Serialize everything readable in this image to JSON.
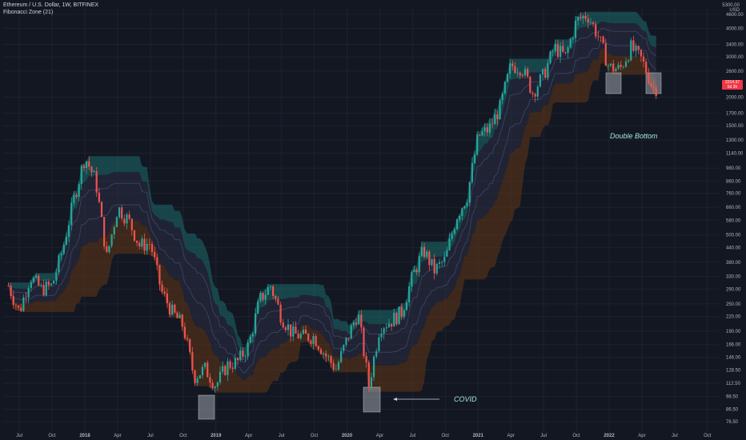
{
  "header": {
    "symbol": "Ethereum / U.S. Dollar, 1W, BITFINEX",
    "indicator": "Fibonacci Zone (21)"
  },
  "price_axis": {
    "unit_line1": "5300.00",
    "unit_line2": "USD",
    "ticks": [
      "4600.00",
      "4000.00",
      "3400.00",
      "3000.00",
      "2600.00",
      "2000.00",
      "1700.00",
      "1500.00",
      "1300.00",
      "1140.00",
      "980.00",
      "860.00",
      "760.00",
      "660.00",
      "580.00",
      "500.00",
      "440.00",
      "380.00",
      "330.00",
      "290.00",
      "250.00",
      "220.00",
      "190.00",
      "166.00",
      "146.00",
      "128.50",
      "112.50",
      "98.50",
      "86.50",
      "76.50"
    ]
  },
  "price_tag": {
    "line1": "2214.37",
    "line2": "6d 3h"
  },
  "time_axis": {
    "ticks": [
      "Jul",
      "Oct",
      "2018",
      "Apr",
      "Jul",
      "Oct",
      "2019",
      "Apr",
      "Jul",
      "Oct",
      "2020",
      "Apr",
      "Jul",
      "Oct",
      "2021",
      "Apr",
      "Jul",
      "Oct",
      "2022",
      "Apr",
      "Jul",
      "Oct"
    ]
  },
  "annotations": {
    "double_bottom": "Double Bottom",
    "covid": "COVID"
  },
  "colors": {
    "background": "#131722",
    "up": "#26a69a",
    "down": "#ef5350",
    "upper_zone": "#1b6b6b",
    "lower_zone": "#5c3417",
    "middle_zone": "#2a2e44",
    "highlight_box": "#9ea3ab",
    "annotation": "#a5e8e0"
  },
  "chart_data": {
    "type": "candlestick",
    "symbol": "ETHUSD",
    "interval": "1W",
    "scale": "log",
    "y_range": [
      70,
      5300
    ],
    "x_range": [
      "2017-06",
      "2022-11"
    ],
    "close_series": [
      [
        "2017-06",
        300
      ],
      [
        "2017-07",
        230
      ],
      [
        "2017-08",
        330
      ],
      [
        "2017-09",
        290
      ],
      [
        "2017-10",
        300
      ],
      [
        "2017-11",
        440
      ],
      [
        "2017-12",
        720
      ],
      [
        "2018-01",
        1100
      ],
      [
        "2018-02",
        860
      ],
      [
        "2018-03",
        400
      ],
      [
        "2018-04",
        660
      ],
      [
        "2018-05",
        580
      ],
      [
        "2018-06",
        450
      ],
      [
        "2018-07",
        460
      ],
      [
        "2018-08",
        285
      ],
      [
        "2018-09",
        230
      ],
      [
        "2018-10",
        200
      ],
      [
        "2018-11",
        120
      ],
      [
        "2018-12",
        130
      ],
      [
        "2019-01",
        110
      ],
      [
        "2019-02",
        135
      ],
      [
        "2019-03",
        140
      ],
      [
        "2019-04",
        165
      ],
      [
        "2019-05",
        260
      ],
      [
        "2019-06",
        300
      ],
      [
        "2019-07",
        220
      ],
      [
        "2019-08",
        185
      ],
      [
        "2019-09",
        180
      ],
      [
        "2019-10",
        180
      ],
      [
        "2019-11",
        150
      ],
      [
        "2019-12",
        130
      ],
      [
        "2020-01",
        175
      ],
      [
        "2020-02",
        230
      ],
      [
        "2020-03",
        110
      ],
      [
        "2020-04",
        200
      ],
      [
        "2020-05",
        210
      ],
      [
        "2020-06",
        230
      ],
      [
        "2020-07",
        330
      ],
      [
        "2020-08",
        430
      ],
      [
        "2020-09",
        350
      ],
      [
        "2020-10",
        390
      ],
      [
        "2020-11",
        600
      ],
      [
        "2020-12",
        740
      ],
      [
        "2021-01",
        1350
      ],
      [
        "2021-02",
        1450
      ],
      [
        "2021-03",
        1800
      ],
      [
        "2021-04",
        2750
      ],
      [
        "2021-05",
        2700
      ],
      [
        "2021-06",
        2100
      ],
      [
        "2021-07",
        2500
      ],
      [
        "2021-08",
        3300
      ],
      [
        "2021-09",
        3000
      ],
      [
        "2021-10",
        4300
      ],
      [
        "2021-11",
        4600
      ],
      [
        "2021-12",
        3700
      ],
      [
        "2022-01",
        2700
      ],
      [
        "2022-02",
        2650
      ],
      [
        "2022-03",
        3300
      ],
      [
        "2022-04",
        2900
      ],
      [
        "2022-05",
        2200
      ]
    ]
  }
}
